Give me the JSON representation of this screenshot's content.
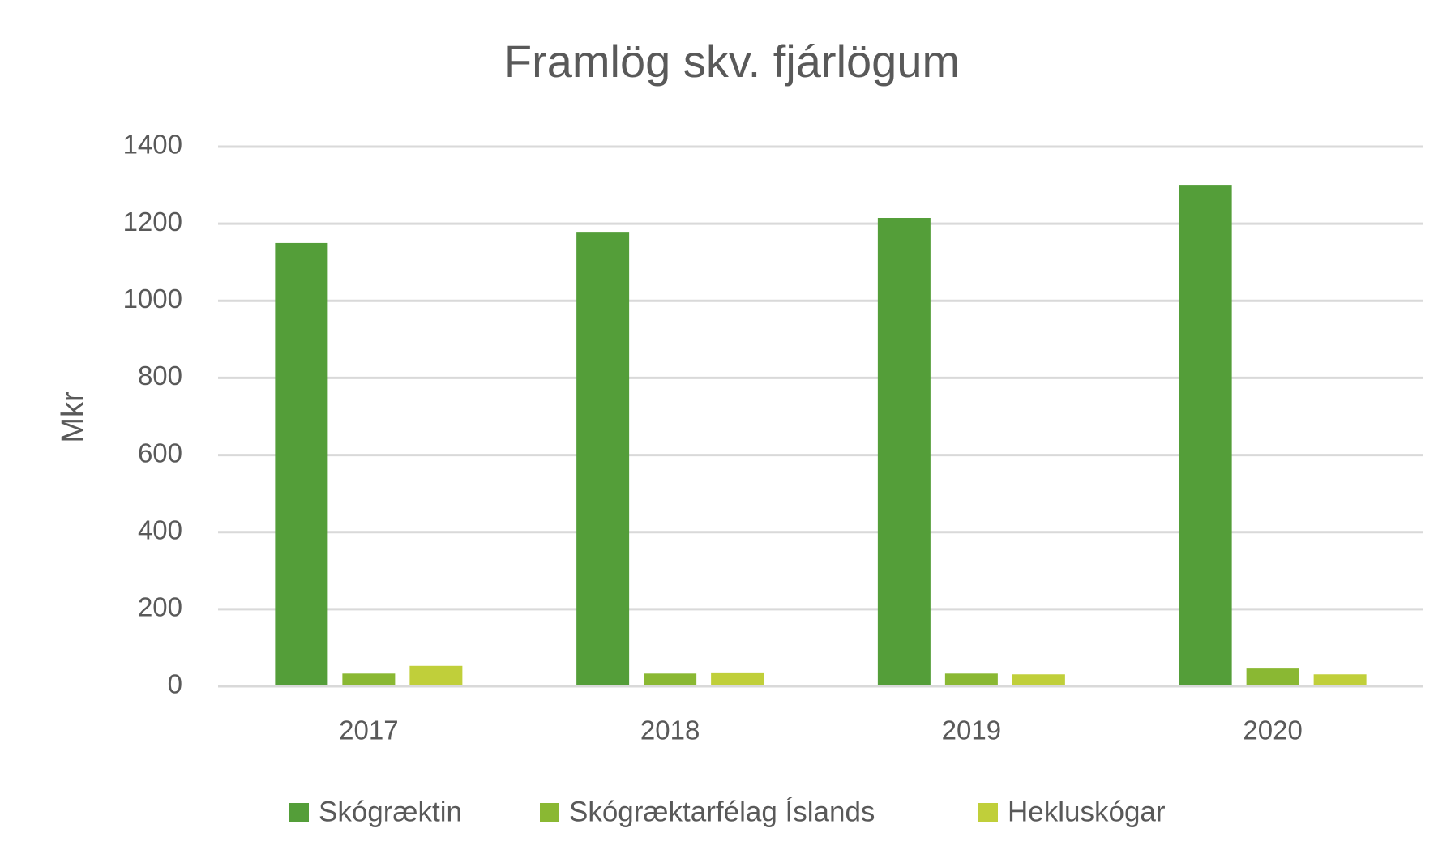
{
  "chart_data": {
    "type": "bar",
    "title": "Framlög skv. fjárlögum",
    "y_label": "Mkr",
    "categories": [
      "2017",
      "2018",
      "2019",
      "2020"
    ],
    "series": [
      {
        "name": "Skógræktin",
        "color": "#549e39",
        "values": [
          1150,
          1179,
          1215,
          1301
        ]
      },
      {
        "name": "Skógræktarfélag Íslands",
        "color": "#8ab833",
        "values": [
          33,
          33,
          33,
          46
        ]
      },
      {
        "name": "Hekluskógar",
        "color": "#c0cf3a",
        "values": [
          53,
          36,
          31,
          31
        ]
      }
    ],
    "ylim": [
      0,
      1400
    ],
    "yticks": [
      0,
      200,
      400,
      600,
      800,
      1000,
      1200,
      1400
    ],
    "grid": true,
    "legend": "bottom"
  }
}
